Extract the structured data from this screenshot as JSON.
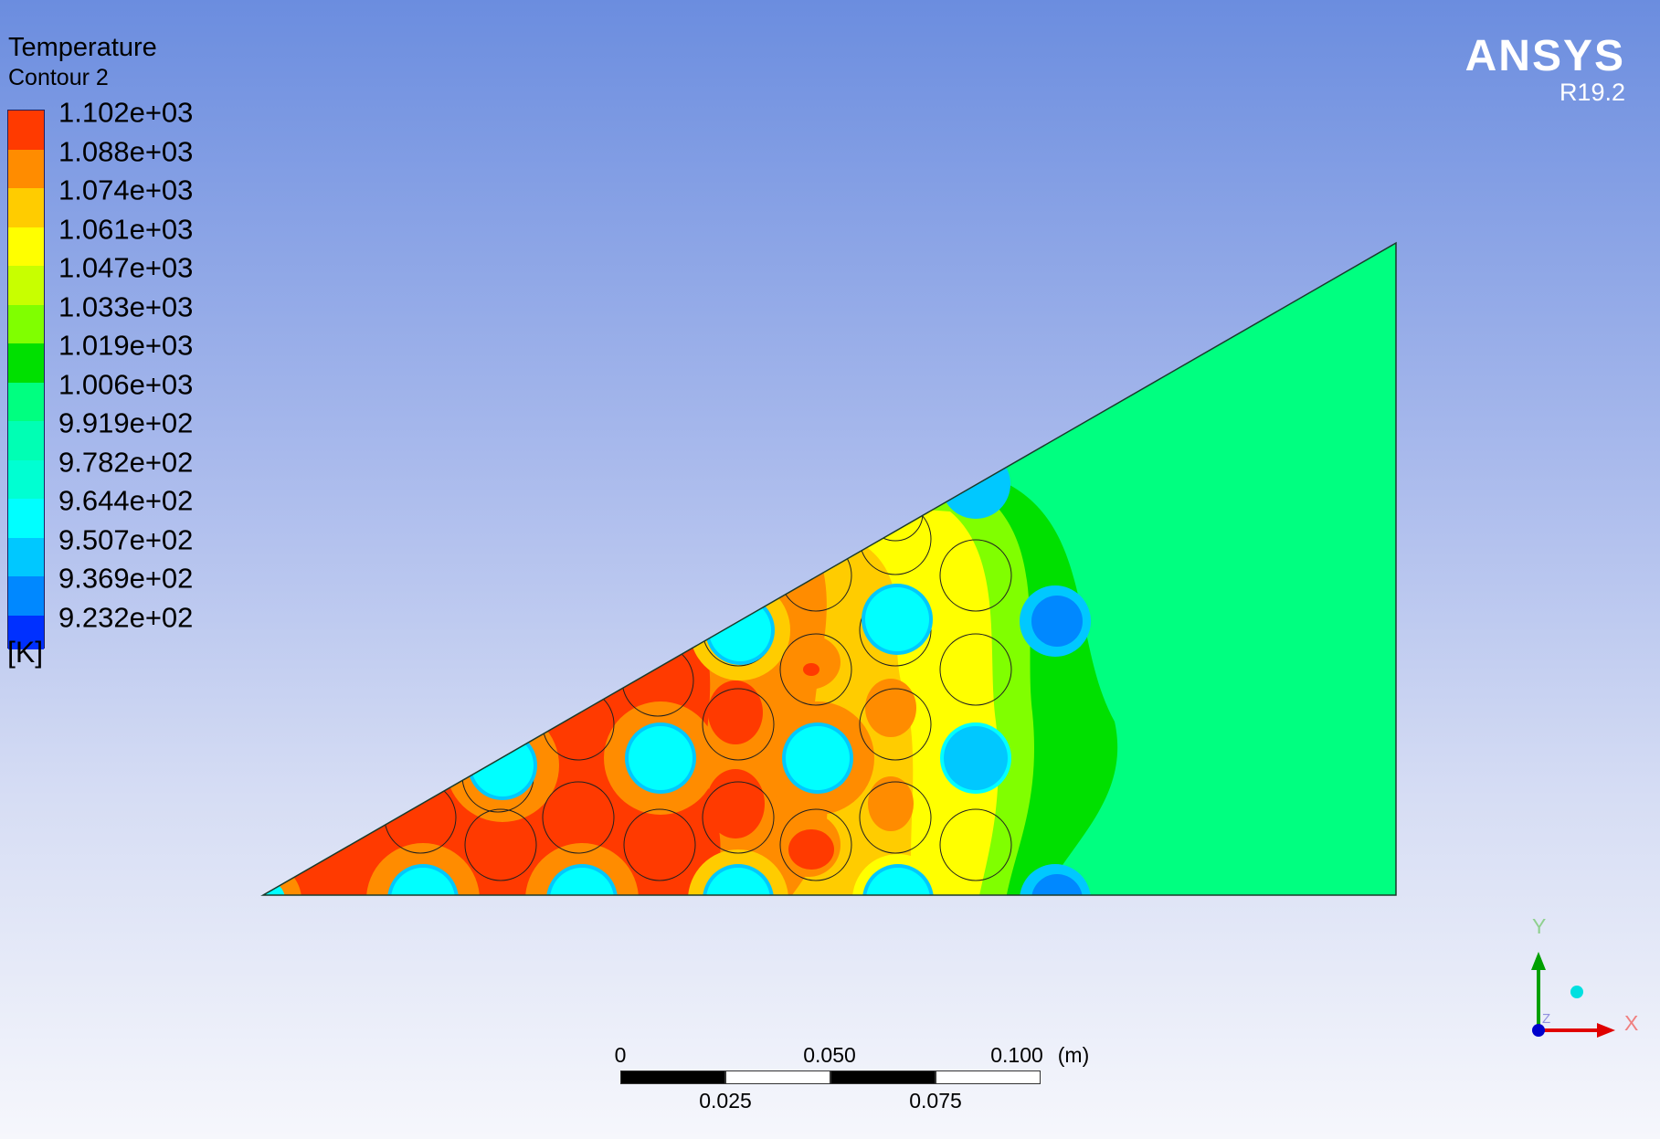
{
  "legend": {
    "title": "Temperature",
    "subtitle": "Contour 2",
    "unit": "[K]",
    "ticks": [
      "1.102e+03",
      "1.088e+03",
      "1.074e+03",
      "1.061e+03",
      "1.047e+03",
      "1.033e+03",
      "1.019e+03",
      "1.006e+03",
      "9.919e+02",
      "9.782e+02",
      "9.644e+02",
      "9.507e+02",
      "9.369e+02",
      "9.232e+02"
    ],
    "band_colors": [
      "#ff3a00",
      "#ff8c00",
      "#ffcc00",
      "#ffff00",
      "#c8ff00",
      "#80ff00",
      "#00e000",
      "#00ff80",
      "#00ffb4",
      "#00ffd2",
      "#00ffff",
      "#00c8ff",
      "#0088ff",
      "#0030ff"
    ]
  },
  "logo": {
    "name": "ANSYS",
    "version": "R19.2"
  },
  "scale_bar": {
    "top_labels": [
      "0",
      "0.050",
      "0.100"
    ],
    "unit": "(m)",
    "bottom_labels": [
      "0.025",
      "0.075"
    ]
  },
  "triad": {
    "x": "X",
    "y": "Y",
    "z": "Z"
  }
}
